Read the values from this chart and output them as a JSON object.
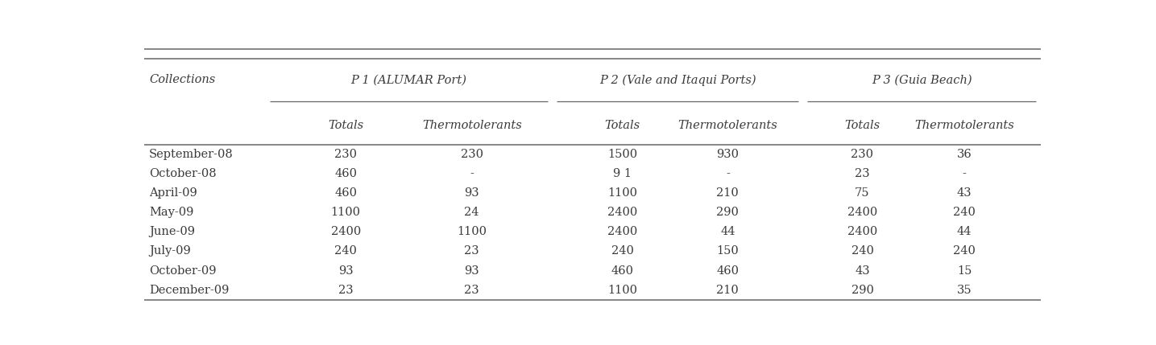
{
  "col_groups": [
    {
      "label": "P 1 (ALUMAR Port)"
    },
    {
      "label": "P 2 (Vale and Itaqui Ports)"
    },
    {
      "label": "P 3 (Guia Beach)"
    }
  ],
  "row_label": "Collections",
  "sub_labels": [
    "Totals",
    "Thermotolerants",
    "Totals",
    "Thermotolerants",
    "Totals",
    "Thermotolerants"
  ],
  "rows": [
    [
      "September-08",
      "230",
      "230",
      "1500",
      "930",
      "230",
      "36"
    ],
    [
      "October-08",
      "460",
      "-",
      "9 1",
      "-",
      "23",
      "-"
    ],
    [
      "April-09",
      "460",
      "93",
      "1100",
      "210",
      "75",
      "43"
    ],
    [
      "May-09",
      "1100",
      "24",
      "2400",
      "290",
      "2400",
      "240"
    ],
    [
      "June-09",
      "2400",
      "1100",
      "2400",
      "44",
      "2400",
      "44"
    ],
    [
      "July-09",
      "240",
      "23",
      "240",
      "150",
      "240",
      "240"
    ],
    [
      "October-09",
      "93",
      "93",
      "460",
      "460",
      "43",
      "15"
    ],
    [
      "December-09",
      "23",
      "23",
      "1100",
      "210",
      "290",
      "35"
    ]
  ],
  "background_color": "#ffffff",
  "text_color": "#3a3a3a",
  "line_color": "#666666",
  "font_size": 10.5
}
